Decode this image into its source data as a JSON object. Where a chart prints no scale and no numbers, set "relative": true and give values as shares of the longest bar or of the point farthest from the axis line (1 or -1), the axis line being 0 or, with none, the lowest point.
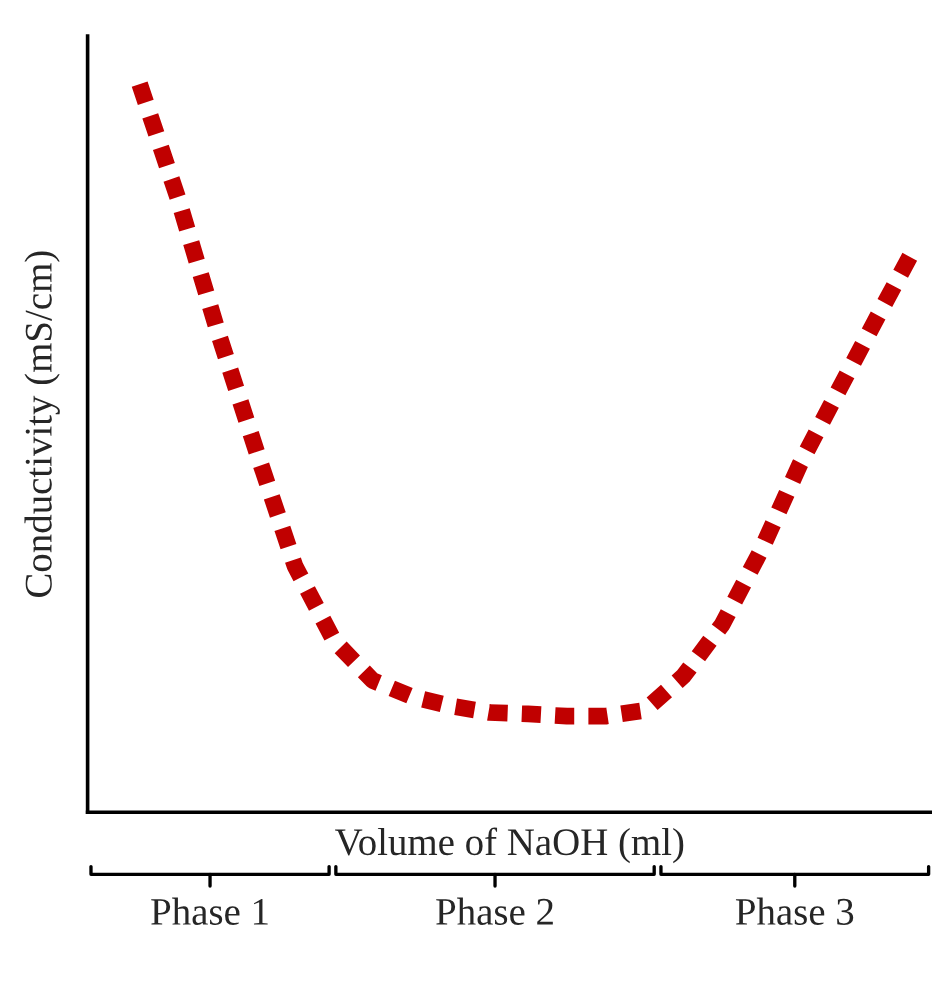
{
  "chart_data": {
    "type": "line",
    "relative": true,
    "xlabel": "Volume of NaOH (ml)",
    "ylabel": "Conductivity (mS/cm)",
    "categories": [
      null,
      null,
      null,
      null,
      null,
      null,
      null,
      null,
      null,
      null,
      null,
      null,
      null,
      null,
      null,
      null,
      null,
      null,
      null,
      null,
      null
    ],
    "series": [
      {
        "color": "#c00000",
        "values": [
          1.0,
          0.841,
          0.662,
          0.497,
          0.338,
          0.236,
          0.181,
          0.159,
          0.146,
          0.137,
          0.135,
          0.132,
          0.132,
          0.14,
          0.187,
          0.258,
          0.36,
          0.478,
          0.58,
          0.681,
          0.78
        ]
      }
    ],
    "line_style": "dotted",
    "marker": "none",
    "grid": false,
    "legend": false,
    "annotations": [
      "Phase 1",
      "Phase 2",
      "Phase 3"
    ]
  }
}
